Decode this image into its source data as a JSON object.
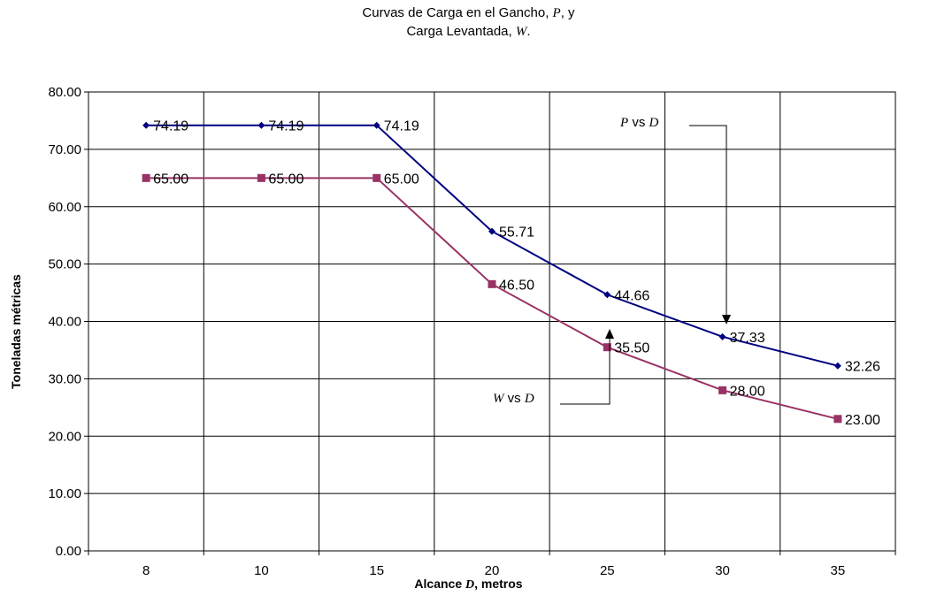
{
  "title": {
    "line1_prefix": "Curvas de Carga en el Gancho,",
    "line1_var": "P",
    "line1_suffix": ", y",
    "line2_prefix": "Carga Levantada,",
    "line2_var": "W",
    "line2_suffix": "."
  },
  "axes": {
    "xlabel_prefix": "Alcance",
    "xlabel_var": "D",
    "xlabel_suffix": ", metros",
    "ylabel": "Toneladas métricas"
  },
  "annotations": {
    "p": {
      "var1": "P",
      "mid": "vs",
      "var2": "D"
    },
    "w": {
      "var1": "W",
      "mid": "vs",
      "var2": "D"
    }
  },
  "chart_data": {
    "type": "line",
    "categories": [
      "8",
      "10",
      "15",
      "20",
      "25",
      "30",
      "35"
    ],
    "series": [
      {
        "name": "P vs D",
        "color": "#000080",
        "marker": "diamond",
        "values": [
          74.19,
          74.19,
          74.19,
          55.71,
          44.66,
          37.33,
          32.26
        ],
        "labels": [
          "74.19",
          "74.19",
          "74.19",
          "55.71",
          "44.66",
          "37.33",
          "32.26"
        ]
      },
      {
        "name": "W vs D",
        "color": "#993366",
        "marker": "square",
        "values": [
          65.0,
          65.0,
          65.0,
          46.5,
          35.5,
          28.0,
          23.0
        ],
        "labels": [
          "65.00",
          "65.00",
          "65.00",
          "46.50",
          "35.50",
          "28.00",
          "23.00"
        ]
      }
    ],
    "ylim": [
      0,
      80
    ],
    "yticks": [
      "0.00",
      "10.00",
      "20.00",
      "30.00",
      "40.00",
      "50.00",
      "60.00",
      "70.00",
      "80.00"
    ],
    "grid": true,
    "legend": "none"
  }
}
